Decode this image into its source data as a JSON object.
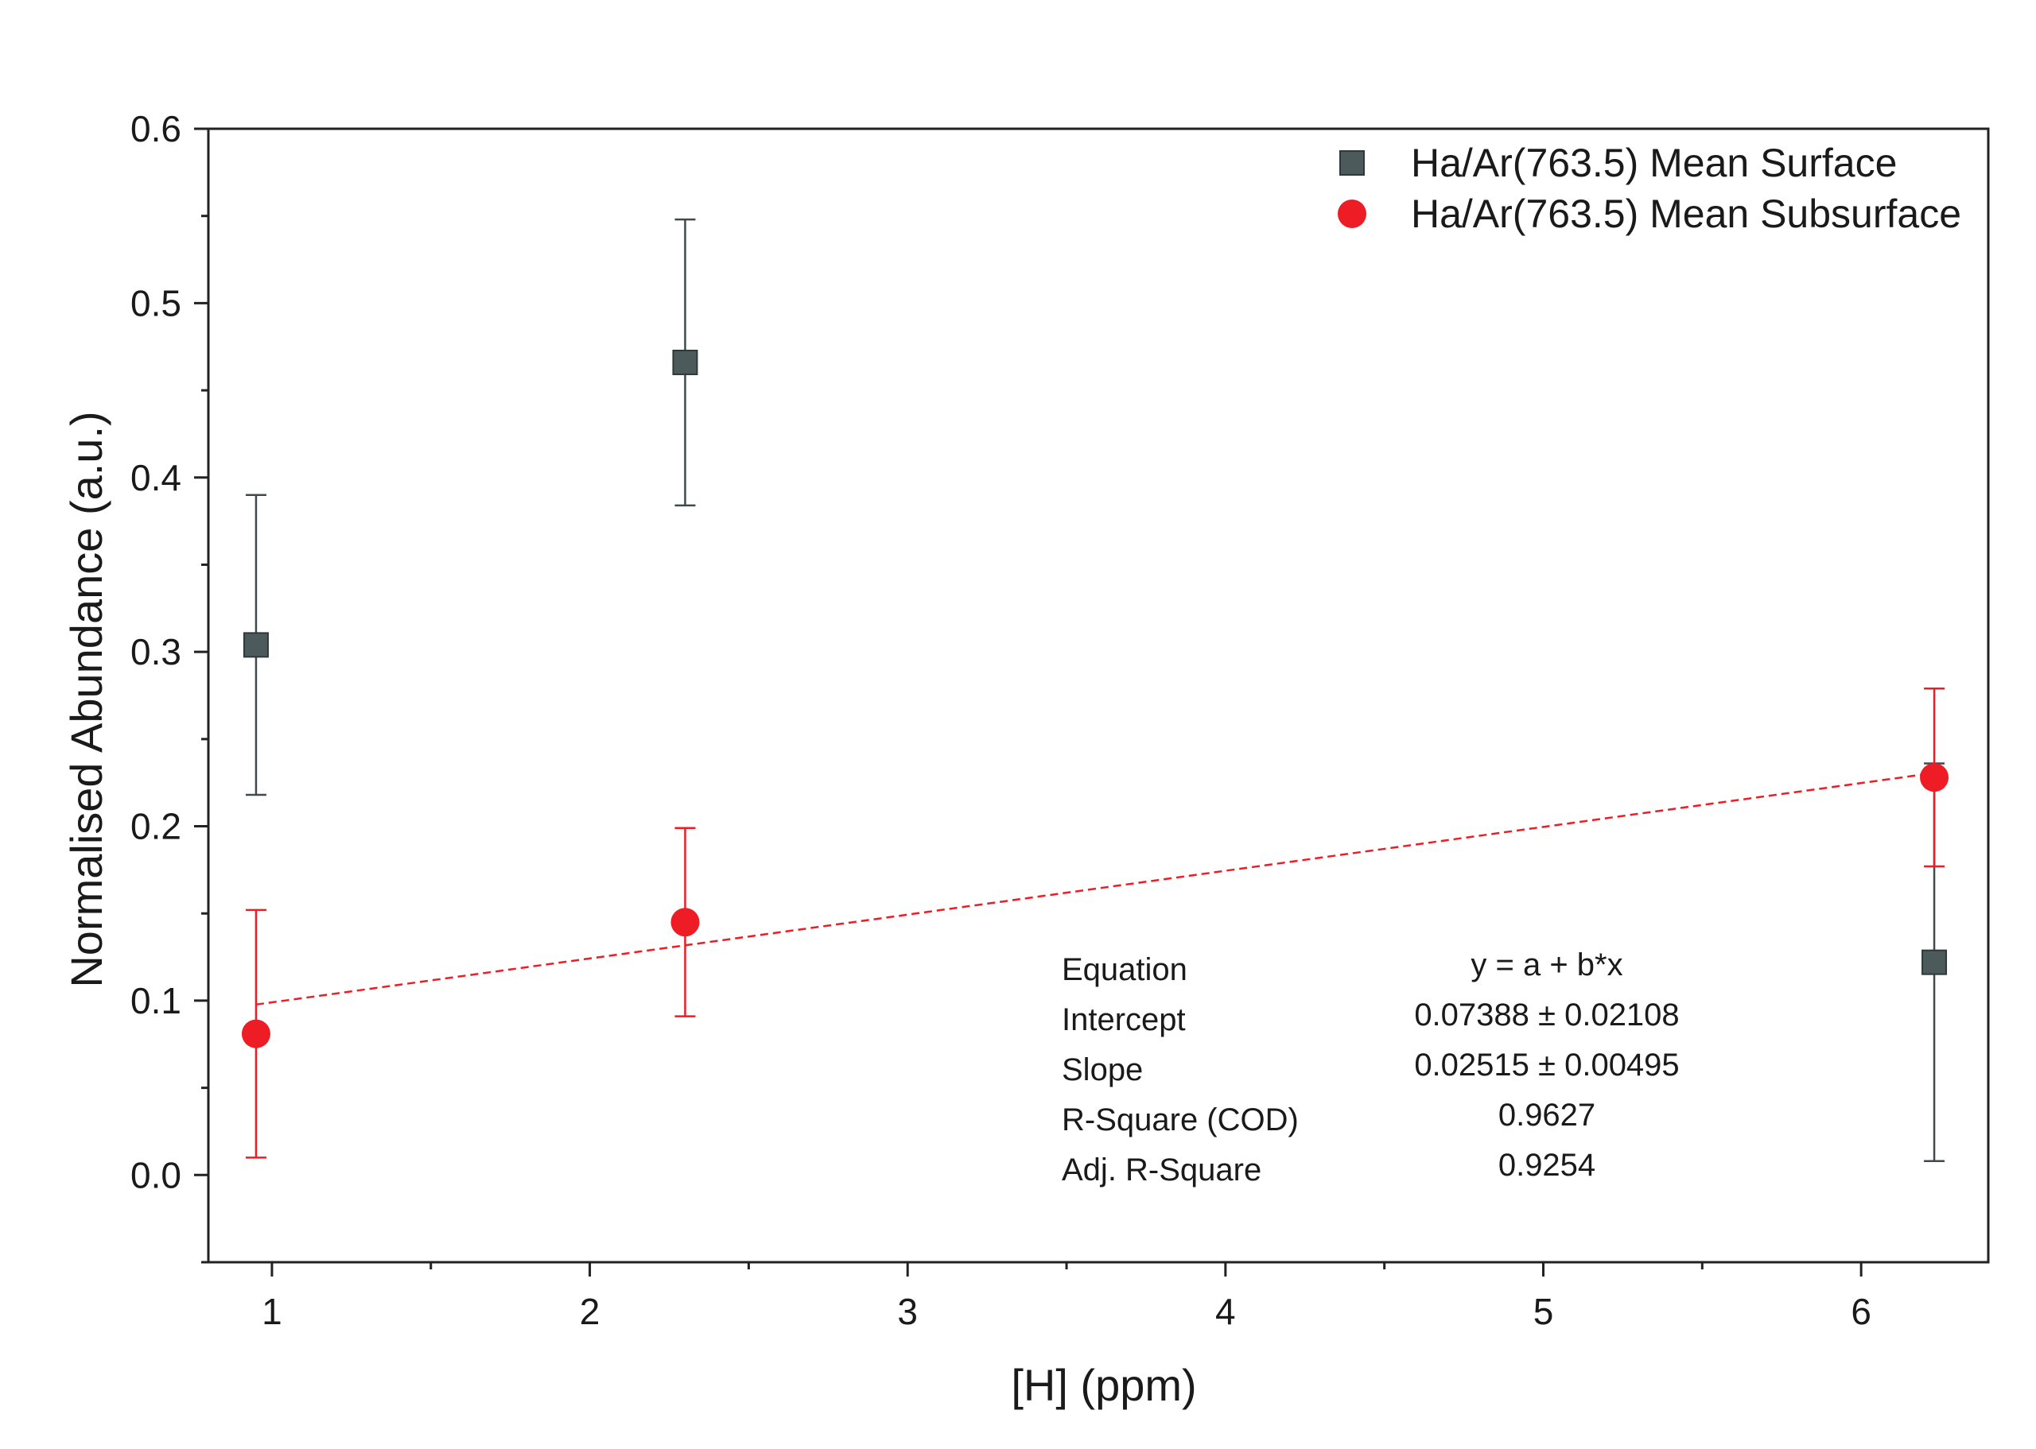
{
  "chart_data": {
    "type": "scatter",
    "xlabel": "[H] (ppm)",
    "ylabel": "Normalised Abundance (a.u.)",
    "xlim": [
      0.8,
      6.4
    ],
    "ylim": [
      -0.05,
      0.6
    ],
    "xticks": [
      1,
      2,
      3,
      4,
      5,
      6
    ],
    "yticks": [
      0.0,
      0.1,
      0.2,
      0.3,
      0.4,
      0.5,
      0.6
    ],
    "xtick_labels": [
      "1",
      "2",
      "3",
      "4",
      "5",
      "6"
    ],
    "ytick_labels": [
      "0.0",
      "0.1",
      "0.2",
      "0.3",
      "0.4",
      "0.5",
      "0.6"
    ],
    "legend_position": "top-right",
    "grid": false,
    "series": [
      {
        "name": "Ha/Ar(763.5) Mean Surface",
        "marker": "square",
        "color": "#4d5a5c",
        "x": [
          0.95,
          2.3,
          6.23
        ],
        "y": [
          0.304,
          0.466,
          0.122
        ],
        "yerr": [
          0.086,
          0.082,
          0.114
        ]
      },
      {
        "name": "Ha/Ar(763.5) Mean Subsurface",
        "marker": "circle",
        "color": "#ee1c25",
        "x": [
          0.95,
          2.3,
          6.23
        ],
        "y": [
          0.081,
          0.145,
          0.228
        ],
        "yerr": [
          0.071,
          0.054,
          0.051
        ]
      }
    ],
    "fit_line": {
      "series": "Ha/Ar(763.5) Mean Subsurface",
      "style": "dashed",
      "color": "#ee1c25",
      "intercept": 0.07388,
      "slope": 0.02515,
      "x_range": [
        0.95,
        6.23
      ]
    },
    "fit_table": [
      {
        "label": "Equation",
        "value": "y = a + b*x"
      },
      {
        "label": "Intercept",
        "value": "0.07388 ± 0.02108"
      },
      {
        "label": "Slope",
        "value": "0.02515 ± 0.00495"
      },
      {
        "label": "R-Square (COD)",
        "value": "0.9627"
      },
      {
        "label": "Adj. R-Square",
        "value": "0.9254"
      }
    ]
  }
}
